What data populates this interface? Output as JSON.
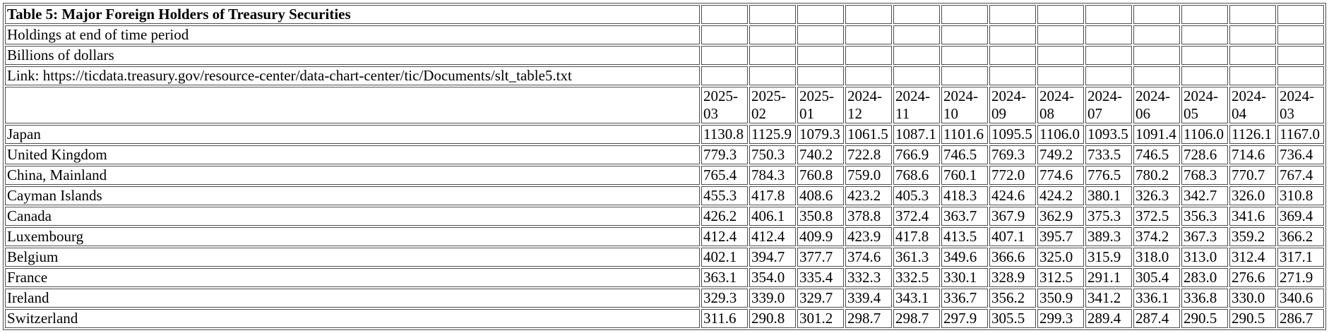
{
  "chart_data": {
    "type": "table",
    "title": "Table 5: Major Foreign Holders of Treasury Securities",
    "holdings_note": "Holdings at end of time period",
    "units_note": "Billions of dollars",
    "link_text": "Link: https://ticdata.treasury.gov/resource-center/data-chart-center/tic/Documents/slt_table5.txt",
    "unit": "Billions of dollars",
    "columns": [
      "2025-03",
      "2025-02",
      "2025-01",
      "2024-12",
      "2024-11",
      "2024-10",
      "2024-09",
      "2024-08",
      "2024-07",
      "2024-06",
      "2024-05",
      "2024-04",
      "2024-03"
    ],
    "rows": [
      {
        "label": "Japan",
        "values": [
          1130.8,
          1125.9,
          1079.3,
          1061.5,
          1087.1,
          1101.6,
          1095.5,
          1106.0,
          1093.5,
          1091.4,
          1106.0,
          1126.1,
          1167.0
        ]
      },
      {
        "label": "United Kingdom",
        "values": [
          779.3,
          750.3,
          740.2,
          722.8,
          766.9,
          746.5,
          769.3,
          749.2,
          733.5,
          746.5,
          728.6,
          714.6,
          736.4
        ]
      },
      {
        "label": "China, Mainland",
        "values": [
          765.4,
          784.3,
          760.8,
          759.0,
          768.6,
          760.1,
          772.0,
          774.6,
          776.5,
          780.2,
          768.3,
          770.7,
          767.4
        ]
      },
      {
        "label": "Cayman Islands",
        "values": [
          455.3,
          417.8,
          408.6,
          423.2,
          405.3,
          418.3,
          424.6,
          424.2,
          380.1,
          326.3,
          342.7,
          326.0,
          310.8
        ]
      },
      {
        "label": "Canada",
        "values": [
          426.2,
          406.1,
          350.8,
          378.8,
          372.4,
          363.7,
          367.9,
          362.9,
          375.3,
          372.5,
          356.3,
          341.6,
          369.4
        ]
      },
      {
        "label": "Luxembourg",
        "values": [
          412.4,
          412.4,
          409.9,
          423.9,
          417.8,
          413.5,
          407.1,
          395.7,
          389.3,
          374.2,
          367.3,
          359.2,
          366.2
        ]
      },
      {
        "label": "Belgium",
        "values": [
          402.1,
          394.7,
          377.7,
          374.6,
          361.3,
          349.6,
          366.6,
          325.0,
          315.9,
          318.0,
          313.0,
          312.4,
          317.1
        ]
      },
      {
        "label": "France",
        "values": [
          363.1,
          354.0,
          335.4,
          332.3,
          332.5,
          330.1,
          328.9,
          312.5,
          291.1,
          305.4,
          283.0,
          276.6,
          271.9
        ]
      },
      {
        "label": "Ireland",
        "values": [
          329.3,
          339.0,
          329.7,
          339.4,
          343.1,
          336.7,
          356.2,
          350.9,
          341.2,
          336.1,
          336.8,
          330.0,
          340.6
        ]
      },
      {
        "label": "Switzerland",
        "values": [
          311.6,
          290.8,
          301.2,
          298.7,
          298.7,
          297.9,
          305.5,
          299.3,
          289.4,
          287.4,
          290.5,
          290.5,
          286.7
        ]
      }
    ],
    "layout": {
      "value_alignment": "left",
      "grid": true,
      "date_header_lines": 2
    }
  }
}
